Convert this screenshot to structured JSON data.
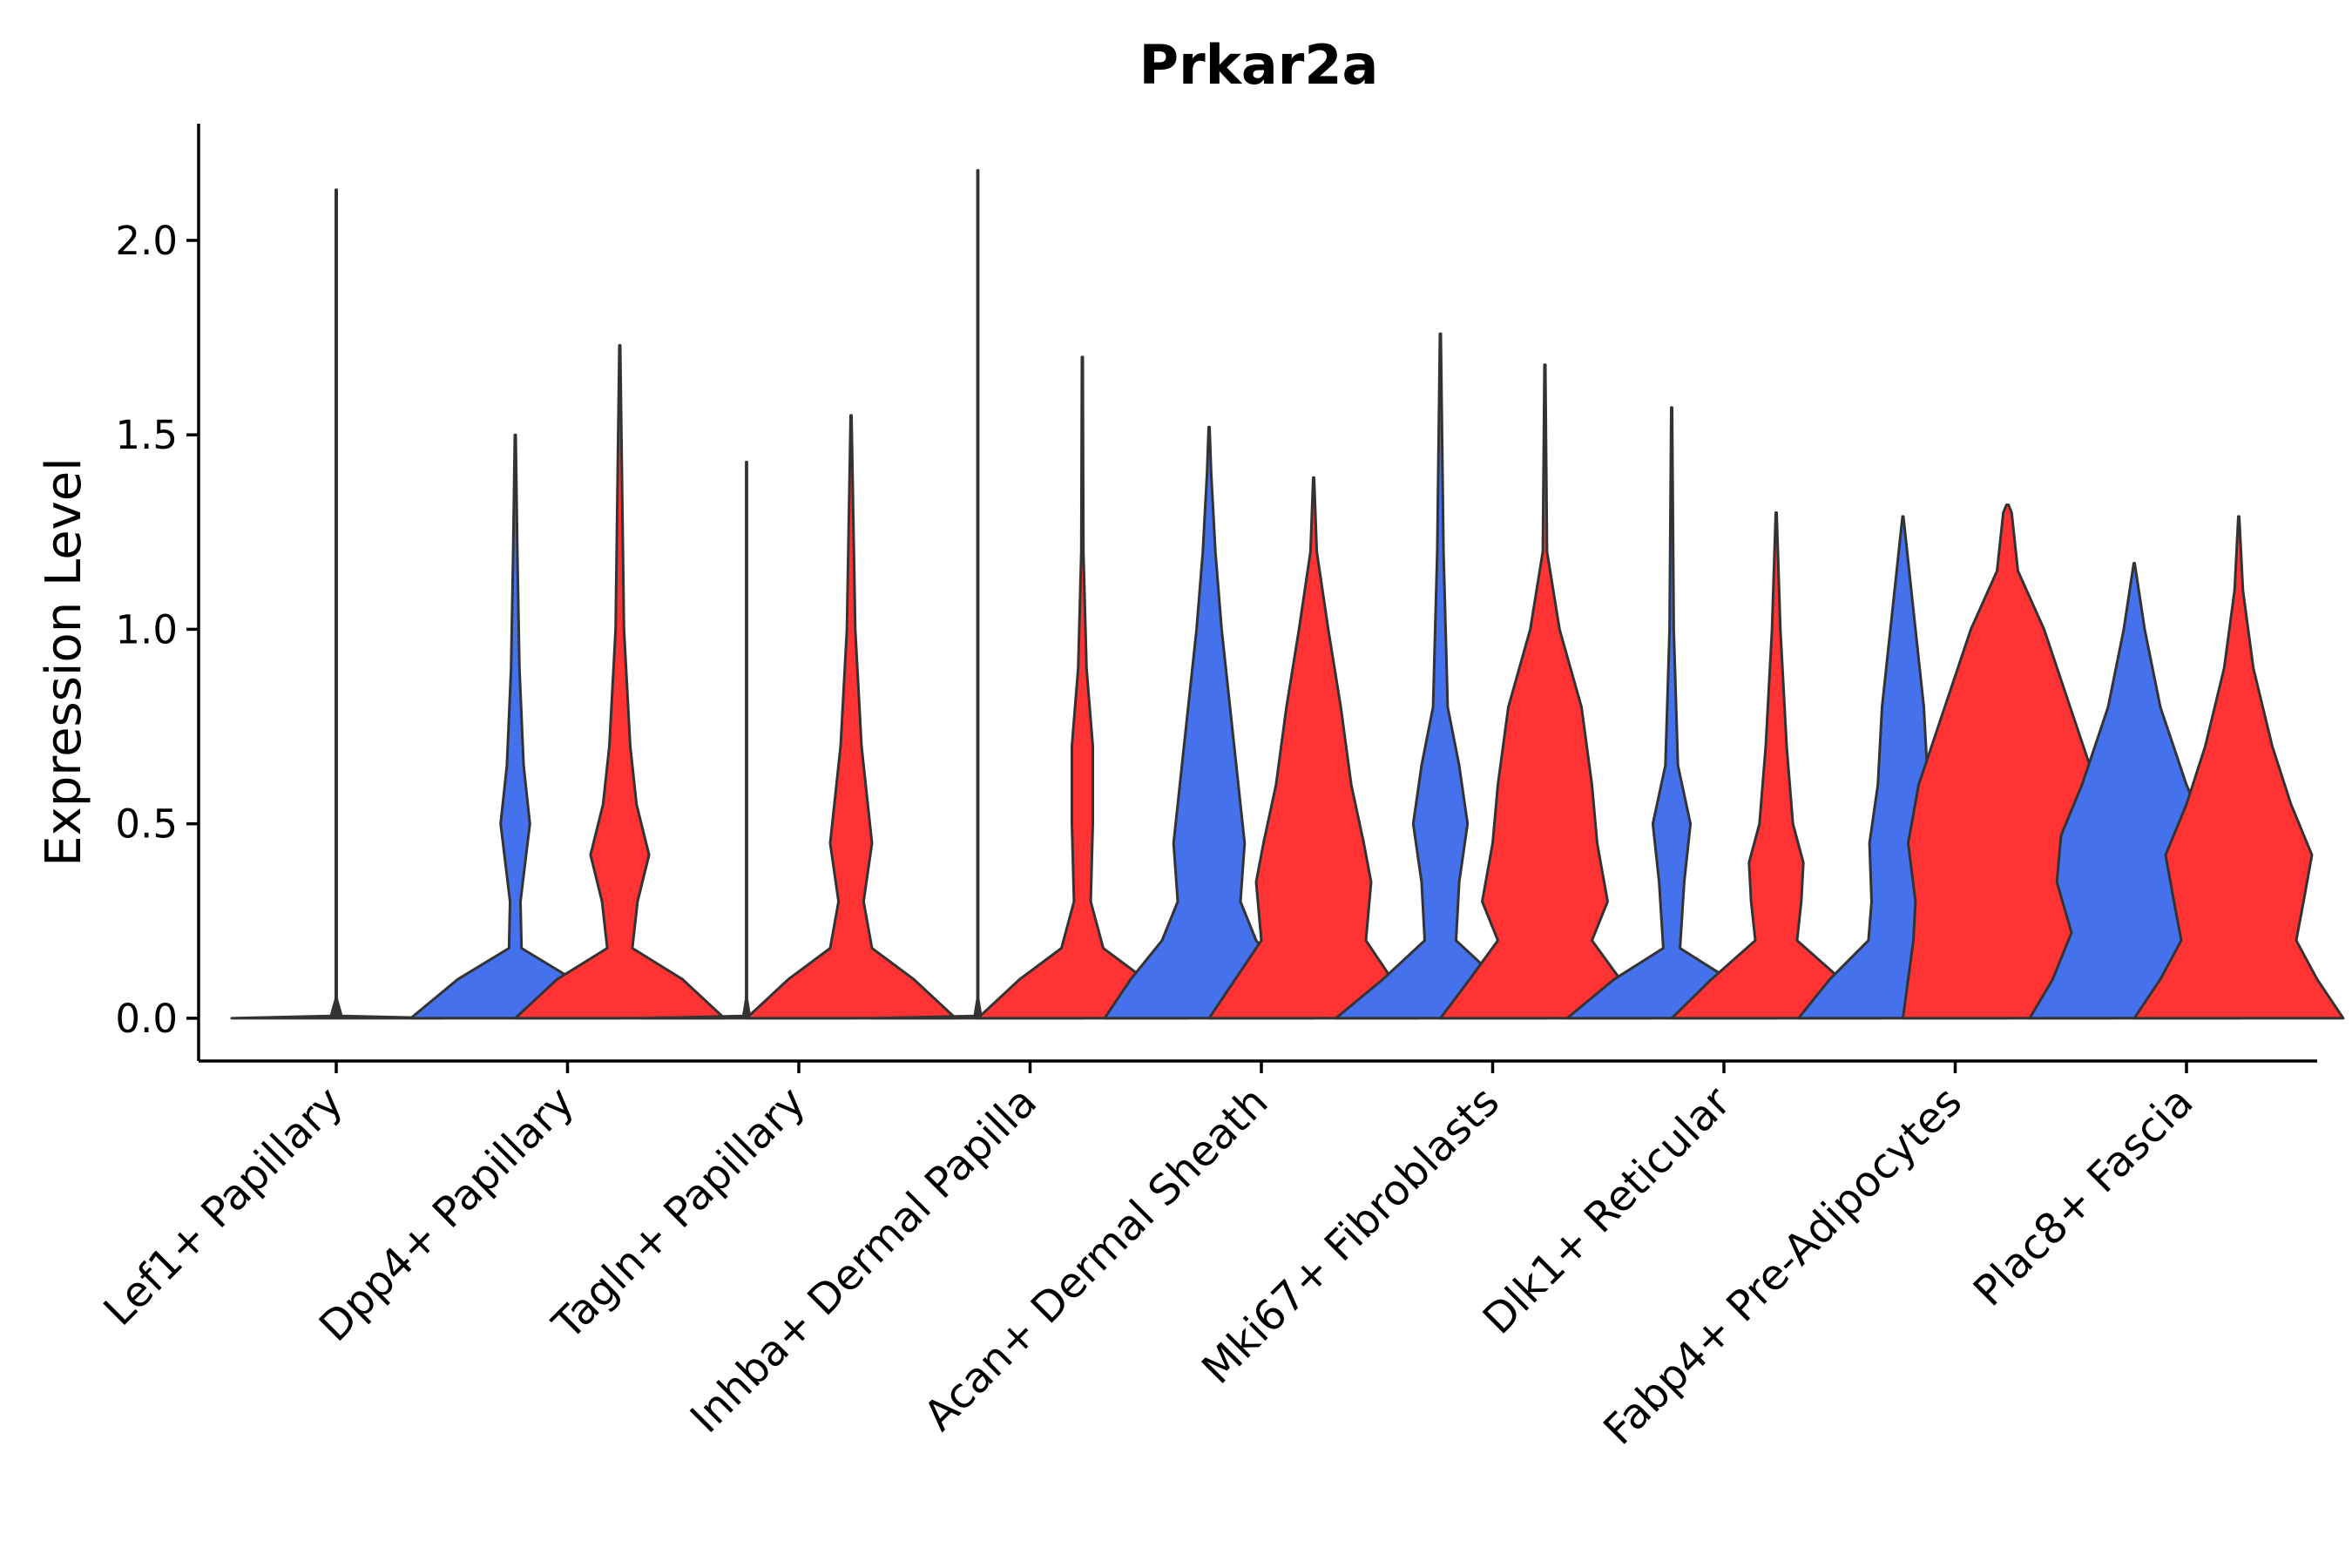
{
  "chart_data": {
    "type": "violin",
    "title": "Prkar2a",
    "xlabel": "",
    "ylabel": "Expression Level",
    "ylim": [
      -0.11,
      2.3
    ],
    "yticks": [
      "0.0",
      "0.5",
      "1.0",
      "1.5",
      "2.0"
    ],
    "ytick_values": [
      0,
      0.5,
      1.0,
      1.5,
      2.0
    ],
    "grid": false,
    "legend": "none",
    "colors": {
      "blue": "#4571EC",
      "red": "#FF3333",
      "outline": "#333333"
    },
    "categories": [
      "Lef1+ Papillary",
      "Dpp4+ Papillary",
      "Tagln+ Papillary",
      "Inhba+ Dermal Papilla",
      "Acan+ Dermal Sheath",
      "Mki67+ Fibroblasts",
      "Dlk1+ Reticular",
      "Fabp4+ Pre-Adipocytes",
      "Plac8+ Fascia"
    ],
    "series": [
      {
        "name": "group-blue",
        "color": "#4571EC",
        "max": [
          2.13,
          1.5,
          1.43,
          2.18,
          1.52,
          1.76,
          1.57,
          1.29,
          1.17
        ],
        "profiles": [
          [
            [
              0,
              1.0
            ],
            [
              0.006,
              0.05
            ],
            [
              0.05,
              0.004
            ],
            [
              2.13,
              0.004
            ]
          ],
          [
            [
              0,
              1.0
            ],
            [
              0.1,
              0.55
            ],
            [
              0.18,
              0.06
            ],
            [
              0.3,
              0.05
            ],
            [
              0.5,
              0.14
            ],
            [
              0.65,
              0.08
            ],
            [
              0.9,
              0.04
            ],
            [
              1.2,
              0.02
            ],
            [
              1.5,
              0.004
            ]
          ],
          [
            [
              0,
              1.0
            ],
            [
              0.006,
              0.03
            ],
            [
              0.05,
              0.003
            ],
            [
              1.43,
              0.003
            ]
          ],
          [
            [
              0,
              1.0
            ],
            [
              0.006,
              0.03
            ],
            [
              0.05,
              0.003
            ],
            [
              2.18,
              0.003
            ]
          ],
          [
            [
              0,
              1.0
            ],
            [
              0.1,
              0.75
            ],
            [
              0.2,
              0.45
            ],
            [
              0.3,
              0.3
            ],
            [
              0.45,
              0.34
            ],
            [
              0.6,
              0.28
            ],
            [
              0.8,
              0.2
            ],
            [
              1.0,
              0.12
            ],
            [
              1.2,
              0.06
            ],
            [
              1.4,
              0.02
            ],
            [
              1.52,
              0.004
            ]
          ],
          [
            [
              0,
              1.0
            ],
            [
              0.1,
              0.55
            ],
            [
              0.2,
              0.15
            ],
            [
              0.35,
              0.18
            ],
            [
              0.5,
              0.26
            ],
            [
              0.65,
              0.18
            ],
            [
              0.8,
              0.07
            ],
            [
              1.2,
              0.03
            ],
            [
              1.76,
              0.004
            ]
          ],
          [
            [
              0,
              1.0
            ],
            [
              0.1,
              0.55
            ],
            [
              0.18,
              0.08
            ],
            [
              0.35,
              0.12
            ],
            [
              0.5,
              0.18
            ],
            [
              0.65,
              0.06
            ],
            [
              1.0,
              0.02
            ],
            [
              1.57,
              0.004
            ]
          ],
          [
            [
              0,
              1.0
            ],
            [
              0.1,
              0.7
            ],
            [
              0.2,
              0.33
            ],
            [
              0.3,
              0.3
            ],
            [
              0.45,
              0.32
            ],
            [
              0.6,
              0.24
            ],
            [
              0.8,
              0.2
            ],
            [
              1.0,
              0.12
            ],
            [
              1.15,
              0.06
            ],
            [
              1.29,
              0.004
            ]
          ],
          [
            [
              0,
              1.0
            ],
            [
              0.1,
              0.78
            ],
            [
              0.22,
              0.6
            ],
            [
              0.35,
              0.74
            ],
            [
              0.47,
              0.7
            ],
            [
              0.6,
              0.5
            ],
            [
              0.8,
              0.25
            ],
            [
              1.0,
              0.1
            ],
            [
              1.17,
              0.004
            ]
          ]
        ]
      },
      {
        "name": "group-red",
        "color": "#FF3333",
        "max": [
          null,
          1.73,
          1.55,
          1.7,
          1.39,
          1.68,
          1.3,
          1.32,
          1.29
        ],
        "profiles": [
          [],
          [
            [
              0,
              1.0
            ],
            [
              0.1,
              0.6
            ],
            [
              0.18,
              0.12
            ],
            [
              0.3,
              0.17
            ],
            [
              0.42,
              0.28
            ],
            [
              0.55,
              0.16
            ],
            [
              0.7,
              0.1
            ],
            [
              1.0,
              0.04
            ],
            [
              1.73,
              0.004
            ]
          ],
          [
            [
              0,
              1.0
            ],
            [
              0.1,
              0.6
            ],
            [
              0.18,
              0.2
            ],
            [
              0.3,
              0.12
            ],
            [
              0.45,
              0.2
            ],
            [
              0.55,
              0.16
            ],
            [
              0.7,
              0.1
            ],
            [
              1.0,
              0.04
            ],
            [
              1.55,
              0.004
            ]
          ],
          [
            [
              0,
              1.0
            ],
            [
              0.1,
              0.6
            ],
            [
              0.18,
              0.2
            ],
            [
              0.3,
              0.08
            ],
            [
              0.5,
              0.1
            ],
            [
              0.7,
              0.1
            ],
            [
              0.9,
              0.04
            ],
            [
              1.2,
              0.01
            ],
            [
              1.7,
              0.004
            ]
          ],
          [
            [
              0,
              1.0
            ],
            [
              0.1,
              0.75
            ],
            [
              0.2,
              0.5
            ],
            [
              0.35,
              0.55
            ],
            [
              0.45,
              0.48
            ],
            [
              0.6,
              0.36
            ],
            [
              0.8,
              0.26
            ],
            [
              1.0,
              0.14
            ],
            [
              1.2,
              0.03
            ],
            [
              1.39,
              0.004
            ]
          ],
          [
            [
              0,
              1.0
            ],
            [
              0.1,
              0.72
            ],
            [
              0.2,
              0.45
            ],
            [
              0.3,
              0.6
            ],
            [
              0.45,
              0.5
            ],
            [
              0.6,
              0.45
            ],
            [
              0.8,
              0.35
            ],
            [
              1.0,
              0.14
            ],
            [
              1.2,
              0.02
            ],
            [
              1.68,
              0.004
            ]
          ],
          [
            [
              0,
              1.0
            ],
            [
              0.1,
              0.62
            ],
            [
              0.2,
              0.2
            ],
            [
              0.3,
              0.24
            ],
            [
              0.4,
              0.26
            ],
            [
              0.5,
              0.16
            ],
            [
              0.7,
              0.1
            ],
            [
              1.0,
              0.04
            ],
            [
              1.3,
              0.004
            ]
          ],
          [
            [
              0,
              1.0
            ],
            [
              0.1,
              0.95
            ],
            [
              0.2,
              0.9
            ],
            [
              0.3,
              0.88
            ],
            [
              0.45,
              0.95
            ],
            [
              0.6,
              0.85
            ],
            [
              0.8,
              0.6
            ],
            [
              1.0,
              0.35
            ],
            [
              1.15,
              0.1
            ],
            [
              1.3,
              0.04
            ],
            [
              1.32,
              0.01
            ]
          ],
          [
            [
              0,
              1.0
            ],
            [
              0.1,
              0.75
            ],
            [
              0.2,
              0.55
            ],
            [
              0.3,
              0.62
            ],
            [
              0.42,
              0.7
            ],
            [
              0.55,
              0.5
            ],
            [
              0.7,
              0.32
            ],
            [
              0.9,
              0.14
            ],
            [
              1.1,
              0.04
            ],
            [
              1.29,
              0.004
            ]
          ]
        ]
      }
    ]
  }
}
